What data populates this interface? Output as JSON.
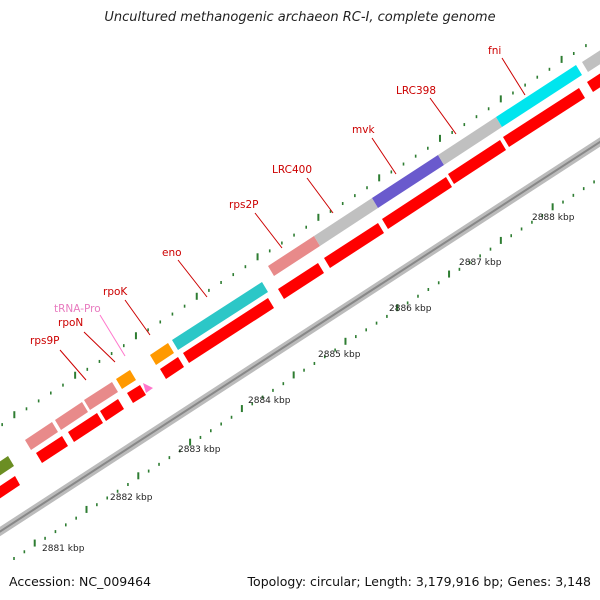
{
  "title": "Uncultured methanogenic archaeon RC-I, complete genome",
  "footer": {
    "accession_label": "Accession:",
    "accession": "NC_009464",
    "topology_label": "Topology:",
    "topology": "circular",
    "length_label": "Length:",
    "length": "3,179,916 bp",
    "genes_label": "Genes:",
    "genes": "3,148"
  },
  "ruler": {
    "unit": "kbp",
    "labels": [
      "2881 kbp",
      "2882 kbp",
      "2883 kbp",
      "2884 kbp",
      "2885 kbp",
      "2886 kbp",
      "2887 kbp",
      "2888 kbp"
    ]
  },
  "genes": [
    {
      "label": "rps9P",
      "label_color": "#cc0000",
      "feature_color": "#e88a8a"
    },
    {
      "label": "rpoN",
      "label_color": "#cc0000",
      "feature_color": "#e88a8a"
    },
    {
      "label": "tRNA-Pro",
      "label_color": "#e87bbf",
      "feature_color": "#ff77cc"
    },
    {
      "label": "rpoK",
      "label_color": "#cc0000",
      "feature_color": "#ff9900"
    },
    {
      "label": "eno",
      "label_color": "#cc0000",
      "feature_color": "#2cc7c7"
    },
    {
      "label": "rps2P",
      "label_color": "#cc0000",
      "feature_color": "#e88a8a"
    },
    {
      "label": "LRC400",
      "label_color": "#cc0000",
      "feature_color": "#c0c0c0"
    },
    {
      "label": "mvk",
      "label_color": "#cc0000",
      "feature_color": "#6a5acd"
    },
    {
      "label": "LRC398",
      "label_color": "#cc0000",
      "feature_color": "#c0c0c0"
    },
    {
      "label": "fni",
      "label_color": "#cc0000",
      "feature_color": "#00e5ee"
    }
  ],
  "colors": {
    "cds_strand": "#ff0000",
    "tick": "#2e7d32",
    "backbone": "#999999",
    "orange": "#ff9900",
    "olive": "#6b8e23"
  }
}
